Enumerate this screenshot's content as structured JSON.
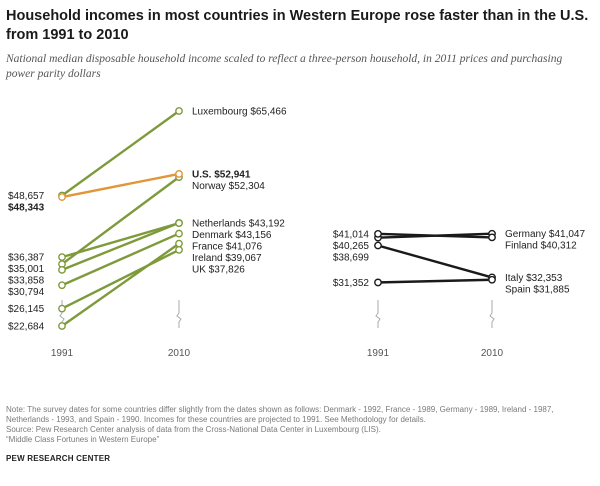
{
  "title": "Household incomes in most countries in Western Europe rose faster than in the U.S. from 1991 to 2010",
  "subtitle": "National median disposable household income scaled to reflect a three-person household, in 2011 prices and purchasing power parity dollars",
  "colors": {
    "us": "#e1963a",
    "left_panel": "#7e9a3a",
    "right_panel": "#1a1a1a",
    "axis_break": "#aaaaaa"
  },
  "chart_data": [
    {
      "type": "line",
      "x": [
        "1991",
        "2010"
      ],
      "ylim": [
        22684,
        65466
      ],
      "series": [
        {
          "name": "Luxembourg",
          "values": [
            48657,
            65466
          ],
          "start_label": "$48,657",
          "end_label": "Luxembourg $65,466"
        },
        {
          "name": "U.S.",
          "values": [
            48343,
            52941
          ],
          "start_label": "$48,343",
          "end_label": "U.S. $52,941",
          "highlight": true
        },
        {
          "name": "Norway",
          "values": [
            35001,
            52304
          ],
          "start_label": "$35,001",
          "end_label": "Norway $52,304"
        },
        {
          "name": "Netherlands",
          "values": [
            33858,
            43192
          ],
          "start_label": "$33,858",
          "end_label": "Netherlands $43,192"
        },
        {
          "name": "Denmark",
          "values": [
            36387,
            43156
          ],
          "start_label": "$36,387",
          "end_label": "Denmark $43,156"
        },
        {
          "name": "France",
          "values": [
            30794,
            41076
          ],
          "start_label": "$30,794",
          "end_label": "France $41,076"
        },
        {
          "name": "Ireland",
          "values": [
            22684,
            39067
          ],
          "start_label": "$22,684",
          "end_label": "Ireland $39,067"
        },
        {
          "name": "UK",
          "values": [
            26145,
            37826
          ],
          "start_label": "$26,145",
          "end_label": "UK $37,826"
        }
      ]
    },
    {
      "type": "line",
      "x": [
        "1991",
        "2010"
      ],
      "ylim": [
        22684,
        65466
      ],
      "series": [
        {
          "name": "Germany",
          "values": [
            40265,
            41047
          ],
          "start_label": "$40,265",
          "end_label": "Germany $41,047"
        },
        {
          "name": "Finland",
          "values": [
            41014,
            40312
          ],
          "start_label": "$41,014",
          "end_label": "Finland $40,312"
        },
        {
          "name": "Italy",
          "values": [
            38699,
            32353
          ],
          "start_label": "$38,699",
          "end_label": "Italy $32,353"
        },
        {
          "name": "Spain",
          "values": [
            31352,
            31885
          ],
          "start_label": "$31,352",
          "end_label": "Spain $31,885"
        }
      ]
    }
  ],
  "footer": {
    "note": "Note: The survey dates for some countries differ slightly from the dates shown as follows: Denmark - 1992, France - 1989, Germany - 1989, Ireland - 1987, Netherlands - 1993, and Spain - 1990. Incomes for these countries are projected to 1991. See Methodology for details.",
    "source": "Source: Pew Research Center analysis of data from the Cross-National Data Center in Luxembourg (LIS).",
    "report": "“Middle Class Fortunes in Western Europe”",
    "brand": "PEW RESEARCH CENTER"
  }
}
